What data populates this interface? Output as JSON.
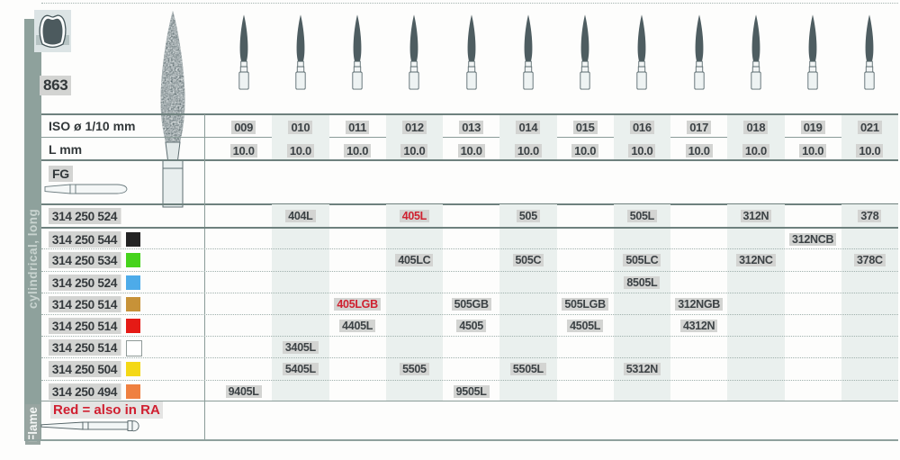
{
  "document": {
    "series_number": "863",
    "watermark_text": "863",
    "sidebar": {
      "group_label": "cylindrical, long",
      "shape_label": "Flame"
    },
    "labels": {
      "iso_row": "ISO ø 1/10 mm",
      "length_row": "L mm",
      "shank_type": "FG"
    },
    "footer": {
      "note": "Red = also in RA"
    }
  },
  "columns": [
    "009",
    "010",
    "011",
    "012",
    "013",
    "014",
    "015",
    "016",
    "017",
    "018",
    "019",
    "021"
  ],
  "length_values": [
    "10.0",
    "10.0",
    "10.0",
    "10.0",
    "10.0",
    "10.0",
    "10.0",
    "10.0",
    "10.0",
    "10.0",
    "10.0",
    "10.0"
  ],
  "rows": [
    {
      "code": "314 250 524",
      "swatch": null,
      "entries": {
        "010": {
          "text": "404L"
        },
        "012": {
          "text": "405L",
          "red": true
        },
        "014": {
          "text": "505"
        },
        "016": {
          "text": "505L"
        },
        "018": {
          "text": "312N"
        },
        "021": {
          "text": "378"
        }
      }
    },
    {
      "code": "314 250 544",
      "swatch": "#232323",
      "entries": {
        "019": {
          "text": "312NCB"
        }
      }
    },
    {
      "code": "314 250 534",
      "swatch": "#46d31c",
      "entries": {
        "012": {
          "text": "405LC"
        },
        "014": {
          "text": "505C"
        },
        "016": {
          "text": "505LC"
        },
        "018": {
          "text": "312NC"
        },
        "021": {
          "text": "378C"
        }
      }
    },
    {
      "code": "314 250 524",
      "swatch": "#4dabe9",
      "entries": {
        "016": {
          "text": "8505L"
        }
      }
    },
    {
      "code": "314 250 514",
      "swatch": "#c79238",
      "entries": {
        "011": {
          "text": "405LGB",
          "red": true
        },
        "013": {
          "text": "505GB"
        },
        "015": {
          "text": "505LGB"
        },
        "017": {
          "text": "312NGB"
        }
      }
    },
    {
      "code": "314 250 514",
      "swatch": "#e51a15",
      "entries": {
        "011": {
          "text": "4405L"
        },
        "013": {
          "text": "4505"
        },
        "015": {
          "text": "4505L"
        },
        "017": {
          "text": "4312N"
        }
      }
    },
    {
      "code": "314 250 514",
      "swatch": "#ffffff",
      "entries": {
        "010": {
          "text": "3405L"
        }
      }
    },
    {
      "code": "314 250 504",
      "swatch": "#f4d816",
      "entries": {
        "010": {
          "text": "5405L"
        },
        "012": {
          "text": "5505"
        },
        "014": {
          "text": "5505L"
        },
        "016": {
          "text": "5312N"
        }
      }
    },
    {
      "code": "314 250 494",
      "swatch": "#ef8040",
      "entries": {
        "009": {
          "text": "9405L"
        },
        "013": {
          "text": "9505L"
        }
      }
    }
  ],
  "style": {
    "striped_column_indexes": [
      1,
      3,
      5,
      7,
      9,
      11
    ],
    "colors": {
      "stripe": "#eaf0ee",
      "sidebar_bar": "#8ea19c",
      "highlight": "#d3d4d2",
      "red_text": "#cf2130",
      "bur_head": "#4e5d61",
      "line_dark": "#6e817e"
    }
  }
}
